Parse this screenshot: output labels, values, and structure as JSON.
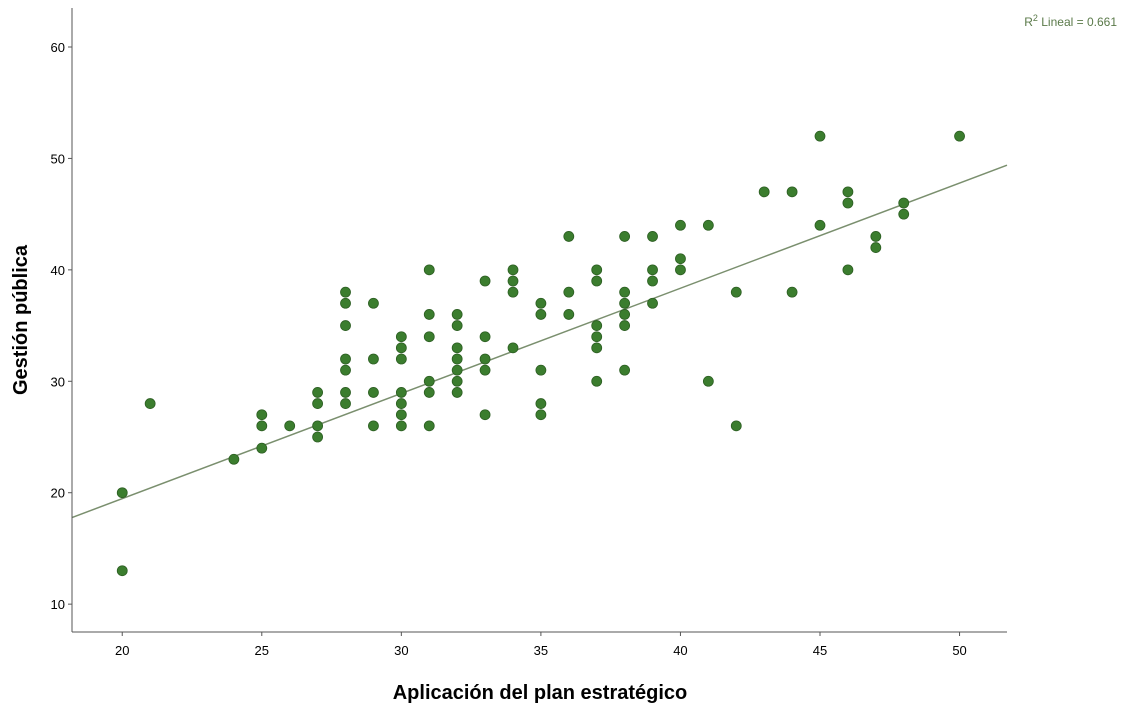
{
  "chart_data": {
    "type": "scatter",
    "title": "",
    "xlabel": "Aplicación del plan estratégico",
    "ylabel": "Gestión pública",
    "xlim": [
      18.2,
      51.7
    ],
    "ylim": [
      7.5,
      63.5
    ],
    "xticks": [
      20,
      25,
      30,
      35,
      40,
      45,
      50
    ],
    "yticks": [
      10,
      20,
      30,
      40,
      50,
      60
    ],
    "grid": false,
    "fit_line": {
      "type": "linear",
      "label_prefix": "R",
      "label_sup": "2",
      "label_suffix": " Lineal = 0.661",
      "intercept": 0.59,
      "slope": 0.944
    },
    "colors": {
      "points": "#3b7d2e",
      "point_edge": "#2c5e22",
      "fit_line": "#7a8f6e",
      "fit_label": "#5b7a4a",
      "axis": "#555555"
    },
    "series": [
      {
        "points": [
          [
            20,
            20
          ],
          [
            20,
            13
          ],
          [
            21,
            28
          ],
          [
            24,
            23
          ],
          [
            25,
            27
          ],
          [
            25,
            26
          ],
          [
            25,
            24
          ],
          [
            26,
            26
          ],
          [
            27,
            29
          ],
          [
            27,
            28
          ],
          [
            27,
            26
          ],
          [
            27,
            25
          ],
          [
            28,
            38
          ],
          [
            28,
            37
          ],
          [
            28,
            35
          ],
          [
            28,
            32
          ],
          [
            28,
            31
          ],
          [
            28,
            29
          ],
          [
            28,
            28
          ],
          [
            29,
            37
          ],
          [
            29,
            32
          ],
          [
            29,
            29
          ],
          [
            29,
            26
          ],
          [
            30,
            34
          ],
          [
            30,
            33
          ],
          [
            30,
            32
          ],
          [
            30,
            29
          ],
          [
            30,
            28
          ],
          [
            30,
            27
          ],
          [
            30,
            26
          ],
          [
            31,
            40
          ],
          [
            31,
            36
          ],
          [
            31,
            34
          ],
          [
            31,
            30
          ],
          [
            31,
            29
          ],
          [
            31,
            26
          ],
          [
            32,
            36
          ],
          [
            32,
            35
          ],
          [
            32,
            33
          ],
          [
            32,
            32
          ],
          [
            32,
            31
          ],
          [
            32,
            30
          ],
          [
            32,
            29
          ],
          [
            33,
            39
          ],
          [
            33,
            34
          ],
          [
            33,
            32
          ],
          [
            33,
            31
          ],
          [
            33,
            27
          ],
          [
            34,
            40
          ],
          [
            34,
            39
          ],
          [
            34,
            38
          ],
          [
            34,
            33
          ],
          [
            35,
            37
          ],
          [
            35,
            36
          ],
          [
            35,
            31
          ],
          [
            35,
            28
          ],
          [
            35,
            27
          ],
          [
            36,
            43
          ],
          [
            36,
            38
          ],
          [
            36,
            36
          ],
          [
            37,
            40
          ],
          [
            37,
            39
          ],
          [
            37,
            35
          ],
          [
            37,
            34
          ],
          [
            37,
            33
          ],
          [
            37,
            30
          ],
          [
            38,
            43
          ],
          [
            38,
            38
          ],
          [
            38,
            37
          ],
          [
            38,
            36
          ],
          [
            38,
            35
          ],
          [
            38,
            31
          ],
          [
            39,
            43
          ],
          [
            39,
            40
          ],
          [
            39,
            39
          ],
          [
            39,
            37
          ],
          [
            40,
            44
          ],
          [
            40,
            41
          ],
          [
            40,
            40
          ],
          [
            41,
            44
          ],
          [
            41,
            30
          ],
          [
            42,
            38
          ],
          [
            42,
            26
          ],
          [
            43,
            47
          ],
          [
            44,
            47
          ],
          [
            44,
            38
          ],
          [
            45,
            52
          ],
          [
            45,
            44
          ],
          [
            46,
            47
          ],
          [
            46,
            46
          ],
          [
            46,
            40
          ],
          [
            47,
            43
          ],
          [
            47,
            42
          ],
          [
            48,
            46
          ],
          [
            48,
            45
          ],
          [
            50,
            52
          ]
        ]
      }
    ]
  }
}
